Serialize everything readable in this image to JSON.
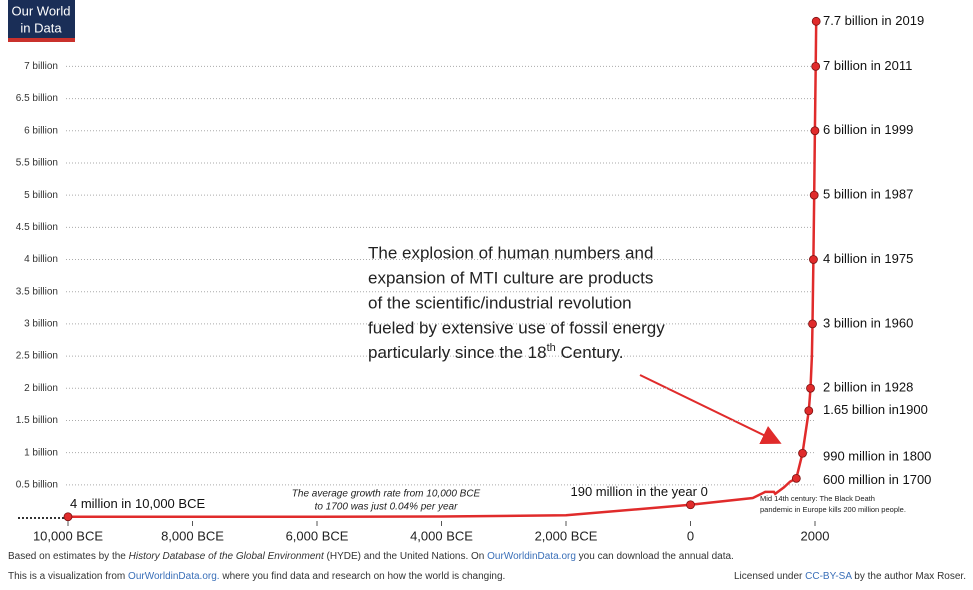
{
  "chart_data": {
    "type": "line",
    "logo": [
      "Our World",
      "in Data"
    ],
    "x": [
      -10000,
      -8000,
      -6000,
      -4000,
      -2000,
      0,
      1000,
      1200,
      1340,
      1360,
      1500,
      1600,
      1700,
      1800,
      1900,
      1928,
      1950,
      1960,
      1975,
      1987,
      1999,
      2011,
      2019
    ],
    "series": [
      {
        "color": "#e02b2b",
        "values": [
          0.004,
          0.005,
          0.005,
          0.007,
          0.027,
          0.19,
          0.295,
          0.39,
          0.39,
          0.36,
          0.46,
          0.55,
          0.6,
          0.99,
          1.65,
          2,
          2.5,
          3,
          4,
          5,
          6,
          7,
          7.7
        ]
      }
    ],
    "ylim": [
      0,
      8
    ],
    "xlim": [
      -10000,
      2000
    ],
    "yticks": [
      {
        "value": 0.5,
        "label": "0.5 billion"
      },
      {
        "value": 1,
        "label": "1 billion"
      },
      {
        "value": 1.5,
        "label": "1.5 billion"
      },
      {
        "value": 2,
        "label": "2 billion"
      },
      {
        "value": 2.5,
        "label": "2.5 billion"
      },
      {
        "value": 3,
        "label": "3 billion"
      },
      {
        "value": 3.5,
        "label": "3.5 billion"
      },
      {
        "value": 4,
        "label": "4 billion"
      },
      {
        "value": 4.5,
        "label": "4.5 billion"
      },
      {
        "value": 5,
        "label": "5 billion"
      },
      {
        "value": 5.5,
        "label": "5.5 billion"
      },
      {
        "value": 6,
        "label": "6 billion"
      },
      {
        "value": 6.5,
        "label": "6.5 billion"
      },
      {
        "value": 7,
        "label": "7 billion"
      }
    ],
    "xticks": [
      {
        "value": -10000,
        "label": "10,000 BCE"
      },
      {
        "value": -8000,
        "label": "8,000 BCE"
      },
      {
        "value": -6000,
        "label": "6,000 BCE"
      },
      {
        "value": -4000,
        "label": "4,000 BCE"
      },
      {
        "value": -2000,
        "label": "2,000 BCE"
      },
      0,
      2000
    ],
    "grid": true,
    "points": [
      {
        "x": -10000,
        "value": 0.004,
        "label": "4 million in 10,000 BCE"
      },
      {
        "x": 0,
        "value": 0.19,
        "label": "190 million in the year 0"
      },
      {
        "x": 1700,
        "value": 0.6,
        "label": "600 million in 1700"
      },
      {
        "x": 1800,
        "value": 0.99,
        "label": "990 million in 1800"
      },
      {
        "x": 1900,
        "value": 1.65,
        "label": "1.65 billion in1900"
      },
      {
        "x": 1928,
        "value": 2,
        "label": "2 billion in 1928"
      },
      {
        "x": 1960,
        "value": 3,
        "label": "3 billion in 1960"
      },
      {
        "x": 1975,
        "value": 4,
        "label": "4 billion in 1975"
      },
      {
        "x": 1987,
        "value": 5,
        "label": "5 billion in 1987"
      },
      {
        "x": 1999,
        "value": 6,
        "label": "6 billion in 1999"
      },
      {
        "x": 2011,
        "value": 7,
        "label": "7 billion in 2011"
      },
      {
        "x": 2019,
        "value": 7.7,
        "label": "7.7 billion in 2019"
      }
    ],
    "annotation": {
      "lines": [
        "The explosion of human numbers and",
        "expansion of MTI culture are products",
        "of the scientific/industrial revolution",
        "fueled by extensive use of fossil energy"
      ],
      "last": [
        "particularly since the 18",
        "th",
        " Century."
      ]
    },
    "growth_note": [
      "The average growth rate from 10,000 BCE",
      "to 1700 was just 0.04% per year"
    ],
    "black_death_note": [
      "Mid 14th century: The Black Death",
      "pandemic in Europe kills 200 million people."
    ],
    "footer": {
      "line1": [
        "Based on estimates by the ",
        "History Database of the Global Environment",
        " (HYDE) and the United Nations. On ",
        "OurWorldinData.org",
        " you can download the annual data."
      ],
      "line2": [
        "This is a visualization from ",
        "OurWorldinData.org.",
        " where you find data and research on how the world is changing."
      ],
      "license": [
        "Licensed under ",
        "CC-BY-SA",
        " by the author Max Roser."
      ]
    }
  }
}
